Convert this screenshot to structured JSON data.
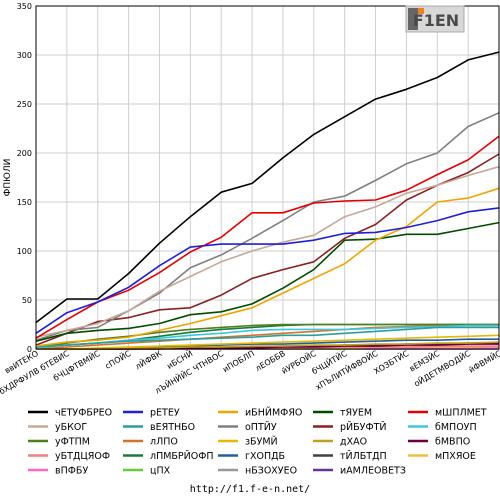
{
  "logo": {
    "text": "F1EN"
  },
  "source_text": "http://f1.f-e-n.net/",
  "chart_data": {
    "type": "line",
    "ylabel": "ФПЮЛИ",
    "ylim": [
      0,
      350
    ],
    "yticks": [
      0,
      50,
      100,
      150,
      200,
      250,
      300,
      350
    ],
    "grid": true,
    "legend_position": "bottom",
    "categories": [
      "ввИТЕКО",
      "бХДРФУЛВ бТЕВИС",
      "бЧЦФТВМЙС",
      "сПОЙС",
      "лЙФВК",
      "иБСНЙ",
      "лЪЙНЙЙС ЧТНВОС",
      "иПОБЛП",
      "лЕОББВ",
      "йУРБОЙС",
      "бЧЦЙТЙС",
      "хПЪЛИТЙФВОЙС",
      "ХОЗБТЙС",
      "вЕМЗЙС",
      "оЙДЕТМВОДЙС",
      "йФВМЙС"
    ],
    "series": [
      {
        "name": "чЕТУФБРЕО",
        "color": "#000000",
        "values": [
          27,
          51,
          51,
          77,
          108,
          135,
          160,
          169,
          195,
          219,
          237,
          255,
          265,
          277,
          295,
          303
        ]
      },
      {
        "name": "рЕТЕУ",
        "color": "#1f1fd6",
        "values": [
          16,
          37,
          48,
          63,
          85,
          104,
          107,
          107,
          107,
          111,
          118,
          119,
          124,
          131,
          140,
          144
        ]
      },
      {
        "name": "иБНЙМФЯО",
        "color": "#f0a400",
        "values": [
          3,
          7,
          9,
          12,
          19,
          26,
          34,
          42,
          57,
          72,
          87,
          111,
          125,
          150,
          154,
          164
        ]
      },
      {
        "name": "тЯУЕМ",
        "color": "#004d00",
        "values": [
          8,
          16,
          19,
          21,
          26,
          35,
          38,
          46,
          62,
          81,
          111,
          112,
          117,
          117,
          123,
          129
        ]
      },
      {
        "name": "мШПЛМЕТ",
        "color": "#e50000",
        "values": [
          11,
          30,
          48,
          60,
          78,
          99,
          114,
          139,
          139,
          149,
          151,
          152,
          162,
          178,
          193,
          217
        ]
      },
      {
        "name": "уБКОГ",
        "color": "#c4a89a",
        "values": [
          12,
          19,
          26,
          39,
          59,
          74,
          89,
          100,
          109,
          116,
          135,
          145,
          159,
          167,
          177,
          186
        ]
      },
      {
        "name": "вЕЯТНБО",
        "color": "#2a9f9f",
        "values": [
          2,
          4,
          6,
          8,
          9,
          10,
          11,
          12,
          14,
          14,
          16,
          18,
          20,
          22,
          22,
          22
        ]
      },
      {
        "name": "оПТЙУ",
        "color": "#808080",
        "values": [
          9,
          19,
          22,
          39,
          57,
          83,
          96,
          113,
          131,
          150,
          156,
          172,
          189,
          200,
          227,
          241
        ]
      },
      {
        "name": "рЙБУФТЙ",
        "color": "#8b2020",
        "values": [
          4,
          16,
          28,
          32,
          40,
          42,
          55,
          72,
          81,
          89,
          113,
          127,
          152,
          167,
          180,
          199
        ]
      },
      {
        "name": "бМПОУП",
        "color": "#3ec7de",
        "values": [
          1,
          4,
          6,
          9,
          11,
          14,
          16,
          19,
          20,
          20,
          20,
          21,
          22,
          23,
          24,
          24
        ]
      },
      {
        "name": "уФТПМ",
        "color": "#4d7f1e",
        "values": [
          2,
          6,
          10,
          13,
          17,
          20,
          22,
          24,
          25,
          25,
          25,
          25,
          25,
          25,
          25,
          25
        ]
      },
      {
        "name": "лЛПО",
        "color": "#d4722a",
        "values": [
          0,
          2,
          4,
          6,
          8,
          10,
          12,
          14,
          16,
          18,
          20,
          22,
          23,
          24,
          24,
          24
        ]
      },
      {
        "name": "зБУМЙ",
        "color": "#e6b800",
        "values": [
          0,
          0,
          1,
          2,
          3,
          4,
          5,
          6,
          7,
          8,
          9,
          10,
          11,
          12,
          13,
          14
        ]
      },
      {
        "name": "дХАО",
        "color": "#c4a020",
        "values": [
          0,
          0,
          0,
          1,
          1,
          2,
          2,
          3,
          3,
          4,
          4,
          5,
          5,
          6,
          6,
          7
        ]
      },
      {
        "name": "бМВПО",
        "color": "#6b0040",
        "values": [
          0,
          0,
          0,
          0,
          0,
          1,
          1,
          1,
          2,
          2,
          3,
          3,
          4,
          4,
          5,
          5
        ]
      },
      {
        "name": "уБТДЦЯОФ",
        "color": "#f08080",
        "values": [
          0,
          0,
          0,
          0,
          0,
          0,
          1,
          1,
          1,
          1,
          2,
          2,
          2,
          3,
          3,
          3
        ]
      },
      {
        "name": "лПМБРЙОФП",
        "color": "#1a7a3a",
        "values": [
          2,
          4,
          6,
          9,
          13,
          17,
          20,
          22,
          24,
          25,
          25,
          25,
          25,
          25,
          25,
          25
        ]
      },
      {
        "name": "гХОПДБ",
        "color": "#2060a0",
        "values": [
          0,
          0,
          0,
          1,
          2,
          3,
          4,
          5,
          5,
          6,
          7,
          8,
          9,
          9,
          10,
          10
        ]
      },
      {
        "name": "тЙЛБТДП",
        "color": "#404040",
        "values": [
          0,
          0,
          0,
          0,
          1,
          1,
          2,
          2,
          3,
          3,
          4,
          4,
          5,
          5,
          6,
          6
        ]
      },
      {
        "name": "мПХЯОЕ",
        "color": "#f0c040",
        "values": [
          0,
          0,
          0,
          0,
          0,
          0,
          0,
          1,
          1,
          1,
          1,
          2,
          2,
          2,
          2,
          3
        ]
      },
      {
        "name": "вПФБУ",
        "color": "#ff66cc",
        "values": [
          0,
          0,
          0,
          0,
          0,
          0,
          0,
          0,
          0,
          1,
          1,
          1,
          1,
          1,
          1,
          1
        ]
      },
      {
        "name": "цПХ",
        "color": "#66cc33",
        "values": [
          0,
          0,
          0,
          0,
          0,
          0,
          0,
          0,
          0,
          0,
          0,
          1,
          1,
          1,
          1,
          1
        ]
      },
      {
        "name": "нБЗОХУЕО",
        "color": "#999999",
        "values": [
          0,
          0,
          0,
          0,
          0,
          0,
          0,
          0,
          0,
          0,
          0,
          0,
          0,
          0,
          0,
          0
        ]
      },
      {
        "name": "иАМЛЕОВЕТЗ",
        "color": "#663399",
        "values": [
          0,
          0,
          0,
          0,
          0,
          0,
          0,
          0,
          0,
          0,
          0,
          0,
          0,
          0,
          0,
          0
        ]
      }
    ],
    "legend_layout": [
      [
        "чЕТУФБРЕО",
        "рЕТЕУ",
        "иБНЙМФЯО",
        "тЯУЕМ",
        "мШПЛМЕТ"
      ],
      [
        "уБКОГ",
        "вЕЯТНБО",
        "оПТЙУ",
        "рЙБУФТЙ",
        "бМПОУП"
      ],
      [
        "уФТПМ",
        "лЛПО",
        "зБУМЙ",
        "дХАО",
        "бМВПО"
      ],
      [
        "уБТДЦЯОФ",
        "лПМБРЙОФП",
        "гХОПДБ",
        "тЙЛБТДП",
        "мПХЯОЕ"
      ],
      [
        "вПФБУ",
        "цПХ",
        "нБЗОХУЕО",
        "иАМЛЕОВЕТЗ"
      ]
    ]
  }
}
